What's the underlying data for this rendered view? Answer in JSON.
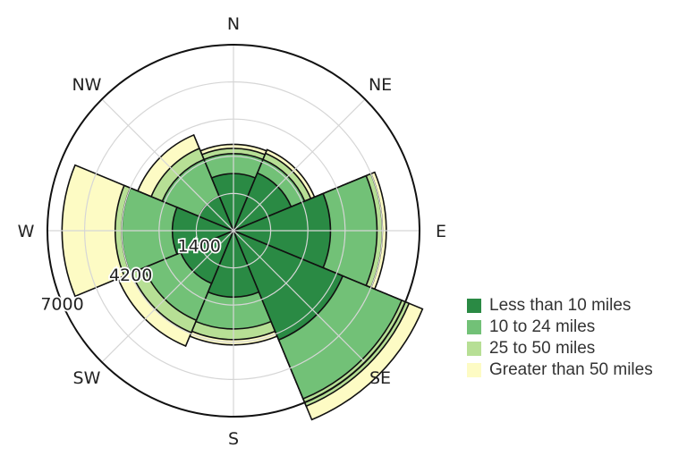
{
  "chart_data": {
    "type": "polar-bar",
    "directions": [
      "N",
      "NE",
      "E",
      "SE",
      "S",
      "SW",
      "W",
      "NW"
    ],
    "radial_ticks": [
      "1400",
      "4200",
      "7000"
    ],
    "rmax": 7000,
    "stacking": "cumulative",
    "series": [
      {
        "name": "Less than 10 miles",
        "color": "#2a8a44",
        "values": [
          2150,
          2350,
          3650,
          4450,
          2500,
          2150,
          2300,
          1400
        ]
      },
      {
        "name": "10 to 24 miles",
        "color": "#72c177",
        "values": [
          2900,
          2900,
          5400,
          6850,
          3700,
          3650,
          4200,
          2900
        ]
      },
      {
        "name": "25 to 50 miles",
        "color": "#b7df95",
        "values": [
          3100,
          3150,
          5600,
          7150,
          4100,
          4150,
          4450,
          3350
        ]
      },
      {
        "name": "Greater than 50 miles",
        "color": "#fdfbc4",
        "values": [
          3250,
          3300,
          5750,
          7700,
          4300,
          4700,
          6450,
          3900
        ]
      }
    ]
  }
}
